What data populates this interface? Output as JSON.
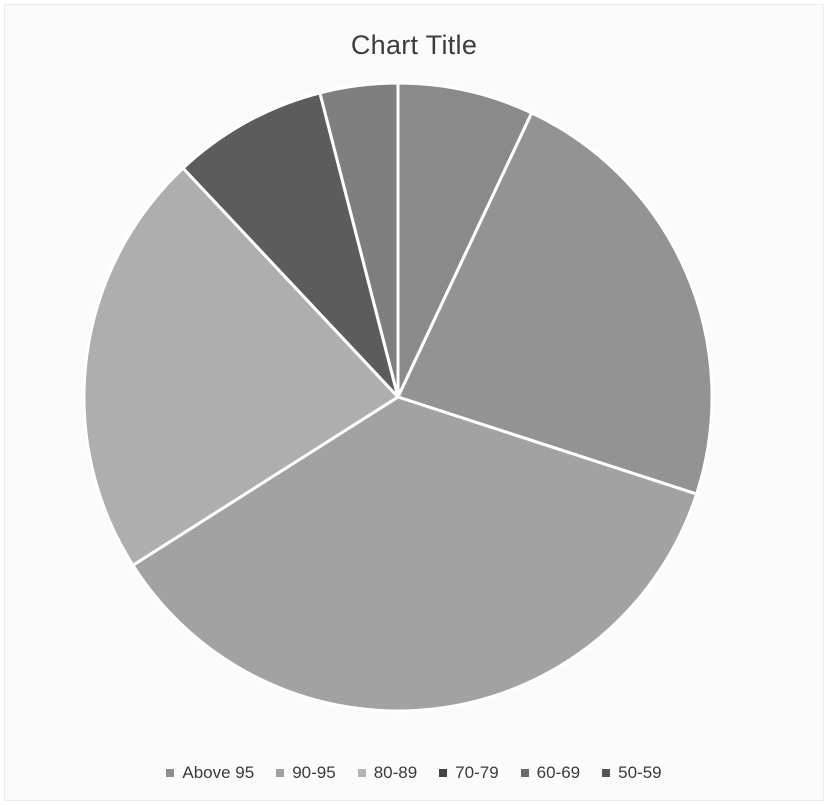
{
  "chart_data": {
    "type": "pie",
    "title": "Chart Title",
    "categories": [
      "Above 95",
      "90-95",
      "80-89",
      "70-79",
      "60-69",
      "50-59"
    ],
    "values": [
      7,
      23,
      36,
      22,
      8,
      4
    ],
    "colors": [
      "#8e8e8e",
      "#a0a0a0",
      "#b5b5b5",
      "#434343",
      "#6b6b6b",
      "#555555"
    ],
    "slice_colors": [
      "#8a8a8a",
      "#939393",
      "#a2a2a2",
      "#aeaeae",
      "#5c5c5c",
      "#7f7f7f"
    ],
    "start_angle_deg": 0,
    "direction": "clockwise",
    "legend_position": "bottom"
  }
}
